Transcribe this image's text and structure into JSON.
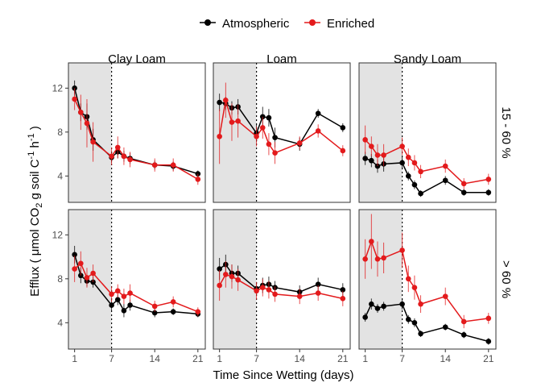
{
  "chart_data": {
    "type": "line",
    "legend": {
      "position": "top",
      "entries": [
        {
          "name": "Atmospheric",
          "color": "#000000"
        },
        {
          "name": "Enriched",
          "color": "#e31a1c"
        }
      ]
    },
    "facet_columns": [
      "Clay Loam",
      "Loam",
      "Sandy Loam"
    ],
    "facet_rows": [
      "15 - 60 %",
      "> 60 %"
    ],
    "xlabel": "Time Since Wetting (days)",
    "ylabel_parts": {
      "a": "Efflux ( μmol CO",
      "b": "2",
      "c": " g soil C",
      "d": "-1",
      "e": " h",
      "f": "-1",
      "g": " )"
    },
    "x_ticks": [
      1,
      7,
      14,
      21
    ],
    "xlim": [
      0,
      22.2
    ],
    "y_ticks_top": [
      4,
      8,
      12
    ],
    "y_ticks_bottom": [
      4,
      8,
      12
    ],
    "ylim_top": [
      1.6,
      14.3
    ],
    "ylim_bottom": [
      1.6,
      14.3
    ],
    "shaded_x_range": [
      0,
      7
    ],
    "vline_x": 7,
    "grid": false,
    "x": [
      1,
      2,
      3,
      4,
      7,
      8,
      9,
      10,
      14,
      17,
      21
    ],
    "panels": [
      {
        "row": 0,
        "col": 0,
        "atmospheric": [
          12.0,
          9.8,
          9.4,
          7.3,
          5.7,
          6.2,
          5.8,
          5.6,
          5.0,
          4.9,
          4.2
        ],
        "atmospheric_err": [
          0.7,
          0.8,
          1.2,
          1.0,
          0.5,
          0.6,
          0.5,
          0.5,
          0.4,
          0.4,
          0.3
        ],
        "enriched": [
          11.0,
          9.8,
          8.8,
          7.1,
          5.8,
          6.6,
          5.8,
          5.5,
          5.0,
          5.0,
          3.7
        ],
        "enriched_err": [
          1.0,
          1.6,
          2.2,
          1.8,
          0.8,
          1.0,
          0.8,
          0.7,
          0.6,
          0.6,
          0.5
        ]
      },
      {
        "row": 0,
        "col": 1,
        "atmospheric": [
          10.7,
          10.6,
          10.2,
          10.3,
          7.9,
          9.4,
          9.3,
          7.5,
          6.9,
          9.7,
          8.4
        ],
        "atmospheric_err": [
          0.8,
          0.6,
          0.6,
          0.7,
          0.8,
          0.9,
          0.8,
          0.9,
          0.6,
          0.4,
          0.4
        ],
        "enriched": [
          7.6,
          10.9,
          8.9,
          9.0,
          7.6,
          8.4,
          6.9,
          6.1,
          7.0,
          8.1,
          6.3
        ],
        "enriched_err": [
          2.5,
          1.6,
          1.7,
          1.5,
          0.9,
          1.0,
          1.0,
          1.0,
          0.6,
          0.6,
          0.5
        ]
      },
      {
        "row": 0,
        "col": 2,
        "atmospheric": [
          5.6,
          5.4,
          4.9,
          5.1,
          5.2,
          4.0,
          3.2,
          2.4,
          3.6,
          2.5,
          2.5
        ],
        "atmospheric_err": [
          0.6,
          0.6,
          0.6,
          0.7,
          0.6,
          0.4,
          0.4,
          0.3,
          0.4,
          0.3,
          0.3
        ],
        "enriched": [
          7.3,
          6.7,
          5.9,
          5.9,
          6.7,
          5.7,
          5.2,
          4.4,
          4.9,
          3.3,
          3.7
        ],
        "enriched_err": [
          1.3,
          0.9,
          1.0,
          1.0,
          0.8,
          0.8,
          0.7,
          0.6,
          0.6,
          0.5,
          0.5
        ]
      },
      {
        "row": 1,
        "col": 0,
        "atmospheric": [
          10.2,
          8.3,
          7.8,
          7.7,
          5.6,
          6.1,
          5.1,
          5.6,
          4.9,
          5.0,
          4.8
        ],
        "atmospheric_err": [
          0.8,
          0.7,
          0.5,
          0.5,
          0.5,
          0.5,
          0.6,
          0.5,
          0.4,
          0.3,
          0.3
        ],
        "enriched": [
          8.9,
          9.4,
          8.1,
          8.5,
          6.6,
          6.9,
          6.4,
          6.7,
          5.5,
          5.9,
          5.0
        ],
        "enriched_err": [
          1.2,
          1.1,
          0.9,
          0.8,
          0.7,
          0.6,
          0.7,
          0.8,
          0.5,
          0.5,
          0.4
        ]
      },
      {
        "row": 1,
        "col": 1,
        "atmospheric": [
          8.9,
          9.3,
          8.5,
          8.5,
          7.1,
          7.4,
          7.5,
          7.2,
          6.8,
          7.5,
          7.0
        ],
        "atmospheric_err": [
          1.0,
          0.9,
          0.8,
          0.7,
          0.6,
          0.7,
          0.7,
          0.6,
          0.6,
          0.6,
          0.6
        ],
        "enriched": [
          7.4,
          8.4,
          8.2,
          7.9,
          6.9,
          7.2,
          7.0,
          6.6,
          6.4,
          6.7,
          6.2
        ],
        "enriched_err": [
          1.4,
          1.2,
          1.1,
          1.0,
          0.8,
          0.8,
          0.8,
          0.7,
          0.7,
          0.7,
          0.7
        ]
      },
      {
        "row": 1,
        "col": 2,
        "atmospheric": [
          4.5,
          5.7,
          5.3,
          5.5,
          5.7,
          4.3,
          4.0,
          3.0,
          3.6,
          2.9,
          2.3
        ],
        "atmospheric_err": [
          0.4,
          0.5,
          0.4,
          0.4,
          0.5,
          0.4,
          0.4,
          0.3,
          0.3,
          0.3,
          0.3
        ],
        "enriched": [
          9.8,
          11.4,
          9.8,
          9.9,
          10.6,
          8.0,
          7.2,
          5.7,
          6.4,
          4.1,
          4.4
        ],
        "enriched_err": [
          1.8,
          2.5,
          1.6,
          1.4,
          1.6,
          1.2,
          1.1,
          0.8,
          0.8,
          0.6,
          0.5
        ]
      }
    ]
  }
}
